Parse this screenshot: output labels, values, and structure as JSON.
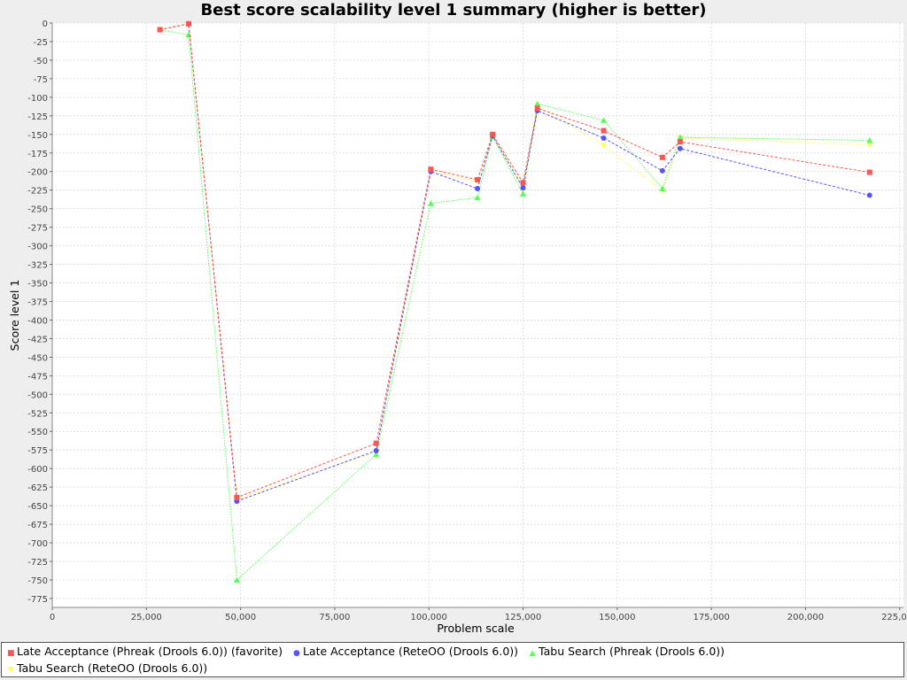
{
  "chart_data": {
    "type": "line",
    "title": "Best score scalability level 1 summary (higher is better)",
    "xlabel": "Problem scale",
    "ylabel": "Score level 1",
    "xlim": [
      0,
      226000
    ],
    "ylim": [
      -787,
      0
    ],
    "x_ticks": [
      0,
      25000,
      50000,
      75000,
      100000,
      125000,
      150000,
      175000,
      200000,
      225000
    ],
    "x_tick_labels": [
      "0",
      "25,000",
      "50,000",
      "75,000",
      "100,000",
      "125,000",
      "150,000",
      "175,000",
      "200,000",
      "225,000"
    ],
    "y_ticks": [
      0,
      -25,
      -50,
      -75,
      -100,
      -125,
      -150,
      -175,
      -200,
      -225,
      -250,
      -275,
      -300,
      -325,
      -350,
      -375,
      -400,
      -425,
      -450,
      -475,
      -500,
      -525,
      -550,
      -575,
      -600,
      -625,
      -650,
      -675,
      -700,
      -725,
      -750,
      -775
    ],
    "grid": true,
    "legend_position": "bottom",
    "series": [
      {
        "name": "Late Acceptance (Phreak (Drools 6.0)) (favorite)",
        "color": "#ff5555",
        "marker": "square",
        "dash": "3,2",
        "x": [
          28600,
          36200,
          49000,
          86000,
          100500,
          112900,
          116900,
          125000,
          128800,
          146400,
          162000,
          166700,
          217000
        ],
        "y": [
          -9,
          -1,
          -639,
          -566,
          -197,
          -211,
          -150,
          -215,
          -115,
          -145,
          -181,
          -160,
          -201
        ]
      },
      {
        "name": "Late Acceptance (ReteOO (Drools 6.0))",
        "color": "#5555ff",
        "marker": "circle",
        "dash": "3,2",
        "x": [
          28600,
          36200,
          49000,
          86000,
          100500,
          112900,
          116900,
          125000,
          128800,
          146400,
          162000,
          166700,
          217000
        ],
        "y": [
          -9,
          -1,
          -644,
          -576,
          -200,
          -223,
          -152,
          -222,
          -118,
          -155,
          -199,
          -169,
          -232
        ]
      },
      {
        "name": "Tabu Search (Phreak (Drools 6.0))",
        "color": "#55ff55",
        "marker": "triangle",
        "dash": "1.5,1.5",
        "x": [
          28600,
          36200,
          49000,
          86000,
          100500,
          112900,
          116900,
          125000,
          128800,
          146400,
          162000,
          166700,
          217000
        ],
        "y": [
          -9,
          -16,
          -750,
          -581,
          -243,
          -235,
          -153,
          -230,
          -109,
          -131,
          -223,
          -154,
          -158
        ]
      },
      {
        "name": "Tabu Search (ReteOO (Drools 6.0))",
        "color": "#ffff55",
        "marker": "triangle-down",
        "dash": "1.5,1.5",
        "x": [
          28600,
          36200,
          49000,
          86000,
          100500,
          112900,
          116900,
          125000,
          128800,
          146400,
          162000,
          166700,
          217000
        ],
        "y": [
          -9,
          -1,
          -641,
          -578,
          -200,
          -213,
          -151,
          -218,
          -112,
          -165,
          -226,
          -155,
          -164
        ]
      }
    ]
  },
  "legend": {
    "items": [
      {
        "label": "Late Acceptance (Phreak (Drools 6.0)) (favorite)",
        "glyph": "■",
        "color": "#ff5555"
      },
      {
        "label": "Late Acceptance (ReteOO (Drools 6.0))",
        "glyph": "●",
        "color": "#5555ff"
      },
      {
        "label": "Tabu Search (Phreak (Drools 6.0))",
        "glyph": "▲",
        "color": "#55ff55"
      },
      {
        "label": "Tabu Search (ReteOO (Drools 6.0))",
        "glyph": "▼",
        "color": "#ffff55"
      }
    ]
  }
}
